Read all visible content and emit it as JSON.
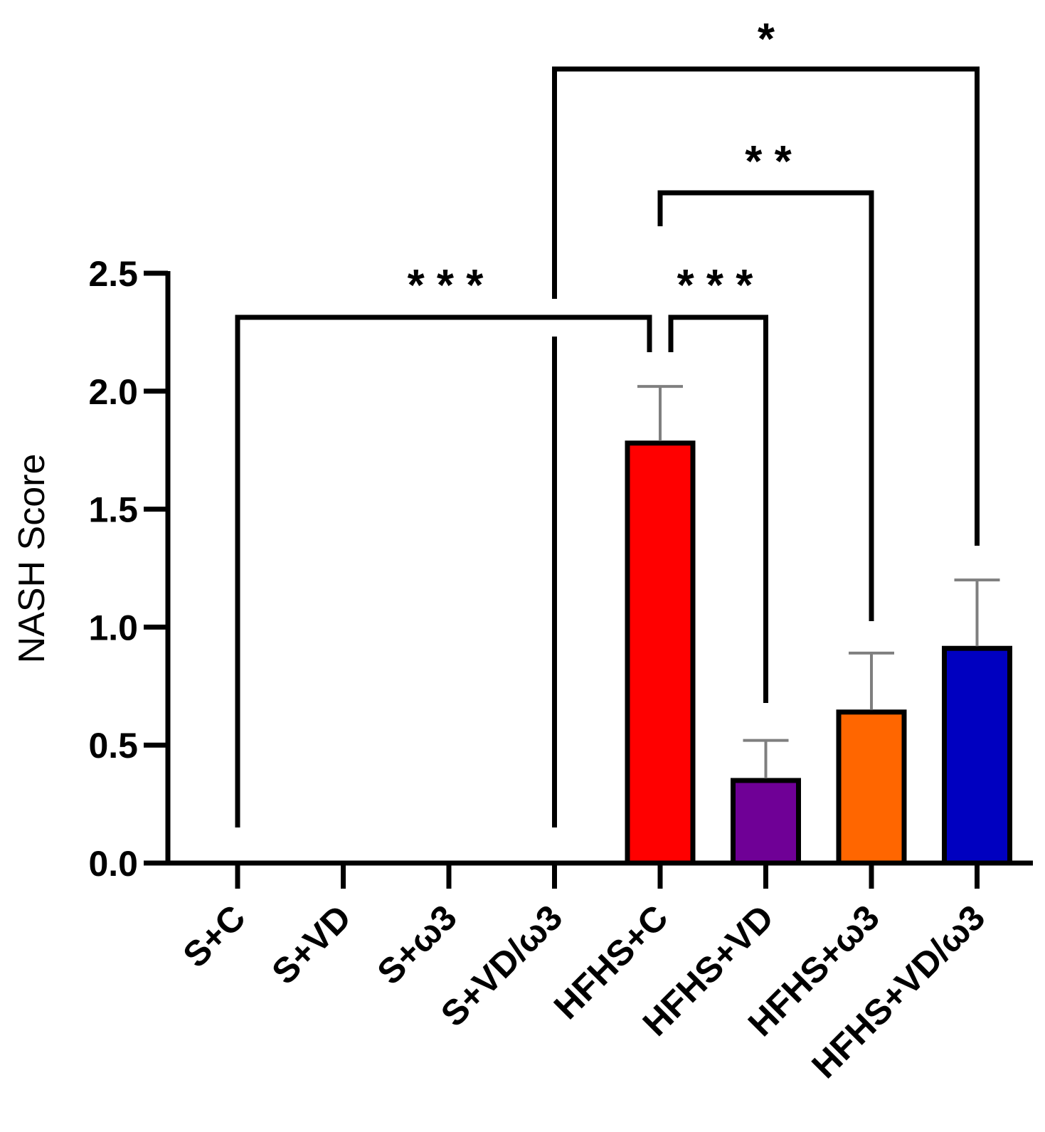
{
  "chart_data": {
    "type": "bar",
    "title": "",
    "xlabel": "",
    "ylabel": "NASH Score",
    "ylim": [
      0,
      2.5
    ],
    "yticks": [
      "0.0",
      "0.5",
      "1.0",
      "1.5",
      "2.0",
      "2.5"
    ],
    "categories": [
      "S+C",
      "S+VD",
      "S+ω3",
      "S+VD/ω3",
      "HFHS+C",
      "HFHS+VD",
      "HFHS+ω3",
      "HFHS+VD/ω3"
    ],
    "values": [
      0,
      0,
      0,
      0,
      1.78,
      0.35,
      0.64,
      0.91
    ],
    "errors": [
      0,
      0,
      0,
      0,
      0.24,
      0.17,
      0.25,
      0.29
    ],
    "colors": [
      "#ffffff",
      "#ffffff",
      "#ffffff",
      "#ffffff",
      "#ff0000",
      "#6f0096",
      "#ff6600",
      "#0000c0"
    ],
    "grid": false,
    "significance": [
      {
        "from": 0,
        "to": 4,
        "label": "* * *"
      },
      {
        "from": 4,
        "to": 5,
        "label": "* * *"
      },
      {
        "from": 4,
        "to": 6,
        "label": "* *"
      },
      {
        "from": 3,
        "to": 7,
        "label": "*"
      }
    ]
  }
}
